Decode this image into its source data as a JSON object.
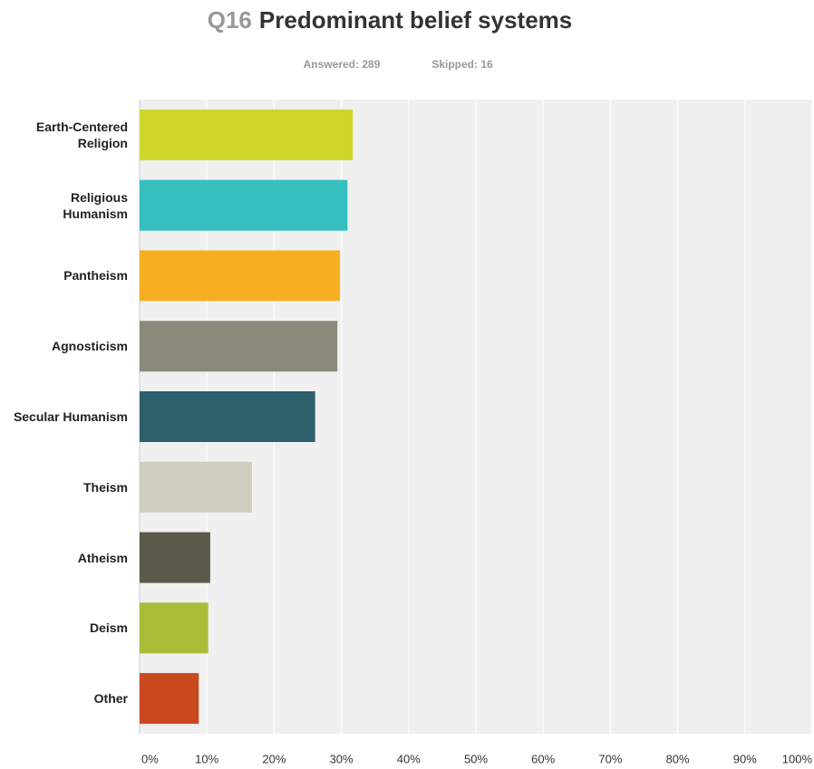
{
  "chart_data": {
    "type": "bar",
    "orientation": "horizontal",
    "question_number": "Q16",
    "title": "Predominant belief systems",
    "answered": "Answered: 289",
    "skipped": "Skipped: 16",
    "categories": [
      "Earth-Centered Religion",
      "Religious Humanism",
      "Pantheism",
      "Agnosticism",
      "Secular Humanism",
      "Theism",
      "Atheism",
      "Deism",
      "Other"
    ],
    "values": [
      31.7,
      30.9,
      29.8,
      29.4,
      26.1,
      16.7,
      10.5,
      10.2,
      8.8
    ],
    "colors": [
      "#d0d52a",
      "#35bfbf",
      "#f7ae22",
      "#898a7a",
      "#2e5f6c",
      "#cfcdc0",
      "#5b5a4a",
      "#a9bd38",
      "#c9491e"
    ],
    "xlim": [
      0,
      100
    ],
    "xticks": [
      {
        "value": 0,
        "label": "0%"
      },
      {
        "value": 10,
        "label": "10%"
      },
      {
        "value": 20,
        "label": "20%"
      },
      {
        "value": 30,
        "label": "30%"
      },
      {
        "value": 40,
        "label": "40%"
      },
      {
        "value": 50,
        "label": "50%"
      },
      {
        "value": 60,
        "label": "60%"
      },
      {
        "value": 70,
        "label": "70%"
      },
      {
        "value": 80,
        "label": "80%"
      },
      {
        "value": 90,
        "label": "90%"
      },
      {
        "value": 100,
        "label": "100%"
      }
    ],
    "grid": true
  }
}
